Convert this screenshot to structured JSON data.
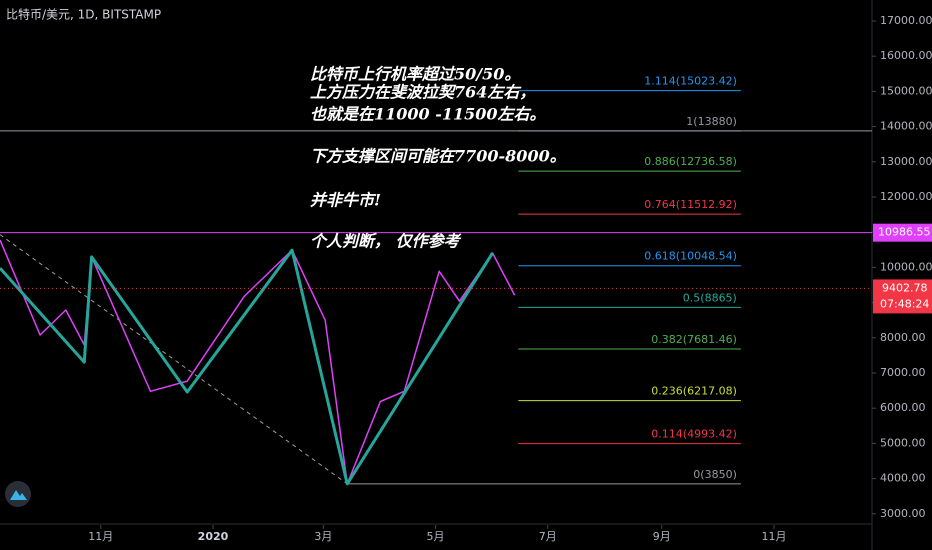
{
  "chart_data": {
    "type": "line",
    "title": "比特币/美元, 1D, BITSTAMP",
    "annotation": [
      "比特币上行机率超过50/50。",
      "上方压力在斐波拉契764左右，",
      "也就是在11000 -11500左右。",
      "下方支撑区间可能在7700-8000。",
      "并非牛市!",
      "个人判断，  仅作参考"
    ],
    "xlim": [
      -115.8,
      358.3
    ],
    "xticks": [
      {
        "value": -61,
        "label": "11月"
      },
      {
        "value": 0,
        "label": "2020"
      },
      {
        "value": 60,
        "label": "3月"
      },
      {
        "value": 121,
        "label": "5月"
      },
      {
        "value": 182,
        "label": "7月"
      },
      {
        "value": 244,
        "label": "9月"
      },
      {
        "value": 305,
        "label": "11月"
      }
    ],
    "ylim": [
      2682,
      17597
    ],
    "yticks": [
      {
        "value": 3000,
        "label": "3000.00"
      },
      {
        "value": 4000,
        "label": "4000.00"
      },
      {
        "value": 5000,
        "label": "5000.00"
      },
      {
        "value": 6000,
        "label": "6000.00"
      },
      {
        "value": 7000,
        "label": "7000.00"
      },
      {
        "value": 8000,
        "label": "8000.00"
      },
      {
        "value": 9000,
        "label": "9000.00"
      },
      {
        "value": 10000,
        "label": "10000.00"
      },
      {
        "value": 11000,
        "label": "11000.00"
      },
      {
        "value": 12000,
        "label": "12000.00"
      },
      {
        "value": 13000,
        "label": "13000.00"
      },
      {
        "value": 14000,
        "label": "14000.00"
      },
      {
        "value": 15000,
        "label": "15000.00"
      },
      {
        "value": 16000,
        "label": "16000.00"
      },
      {
        "value": 17000,
        "label": "17000.00"
      }
    ],
    "series": [
      {
        "name": "zigzag-major",
        "color": "#26a69a",
        "x": [
          -115.8,
          -70,
          -66,
          -14,
          43,
          73,
          152
        ],
        "values": [
          9980,
          7310,
          10300,
          6460,
          10490,
          3850,
          10410
        ]
      },
      {
        "name": "zigzag-minor",
        "color": "#e040fb",
        "x": [
          -115.8,
          -94,
          -80,
          -70,
          -66,
          -34,
          -14,
          17,
          43,
          61,
          73,
          91,
          104,
          123,
          134,
          152,
          164
        ],
        "values": [
          10780,
          8080,
          8790,
          7800,
          10300,
          6480,
          6770,
          9180,
          10490,
          8500,
          3850,
          6190,
          6480,
          9890,
          9040,
          10410,
          9210
        ]
      }
    ],
    "trend_line": {
      "color": "#9e9e9e",
      "x": [
        -115.8,
        73
      ],
      "values": [
        10930,
        3850
      ]
    },
    "resistance": {
      "value": 13880,
      "color": "#9598a1"
    },
    "marker_line": {
      "value": 10986.55,
      "color": "#e040fb"
    },
    "last_price": {
      "value": 9402.78,
      "countdown": "07:48:24",
      "color": "#f23645"
    },
    "fib_start": 166,
    "fib_end": 287,
    "fib_levels": [
      {
        "ratio": 1.114,
        "value": 15023.42,
        "label": "1.114(15023.42)",
        "color": "#2196f3"
      },
      {
        "ratio": 1,
        "value": 13880,
        "label": "1(13880)",
        "color": "#9598a1"
      },
      {
        "ratio": 0.886,
        "value": 12736.58,
        "label": "0.886(12736.58)",
        "color": "#4caf50"
      },
      {
        "ratio": 0.764,
        "value": 11512.92,
        "label": "0.764(11512.92)",
        "color": "#f23645"
      },
      {
        "ratio": 0.618,
        "value": 10048.54,
        "label": "0.618(10048.54)",
        "color": "#2196f3"
      },
      {
        "ratio": 0.5,
        "value": 8865,
        "label": "0.5(8865)",
        "color": "#26a69a"
      },
      {
        "ratio": 0.382,
        "value": 7681.46,
        "label": "0.382(7681.46)",
        "color": "#4caf50"
      },
      {
        "ratio": 0.236,
        "value": 6217.08,
        "label": "0.236(6217.08)",
        "color": "#cddc39"
      },
      {
        "ratio": 0.114,
        "value": 4993.42,
        "label": "0.114(4993.42)",
        "color": "#f23645"
      },
      {
        "ratio": 0,
        "value": 3850,
        "label": "0(3850)",
        "color": "#9598a1"
      }
    ]
  }
}
